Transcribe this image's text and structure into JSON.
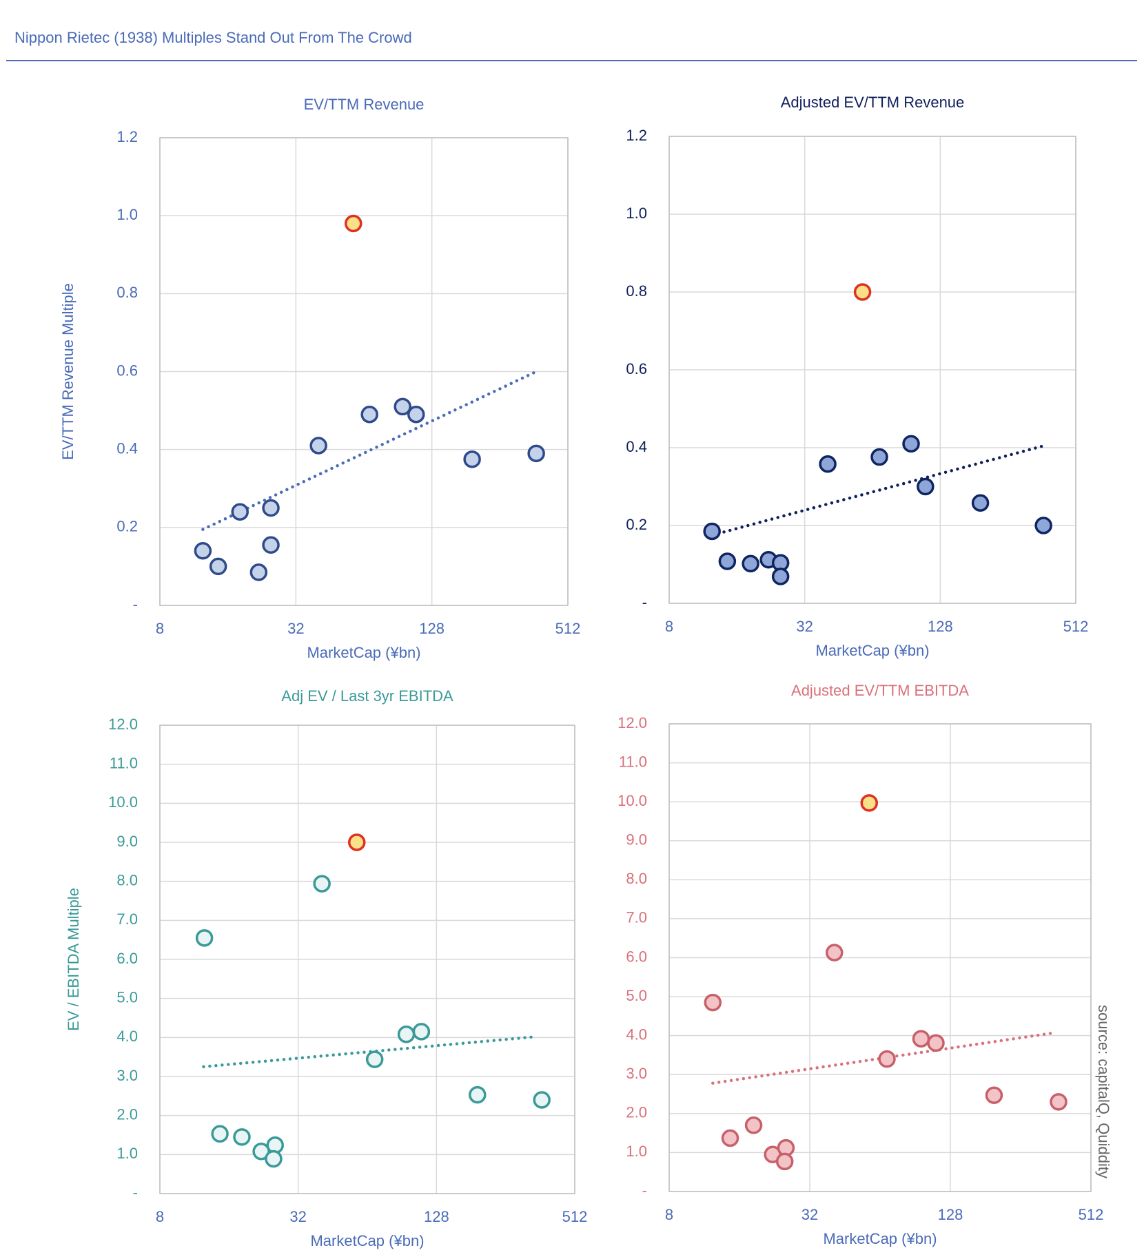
{
  "title": "Nippon Rietec (1938) Multiples Stand Out From The Crowd",
  "source": "source: capitalQ, Quiddity",
  "chart_data": [
    {
      "type": "scatter",
      "title": "EV/TTM Revenue",
      "xlabel": "MarketCap (¥bn)",
      "ylabel": "EV/TTM Revenue Multiple",
      "color": "#4a6bb8",
      "xscale": "log2",
      "xlim": [
        8,
        512
      ],
      "xticks": [
        8,
        32,
        128,
        512
      ],
      "ylim": [
        0,
        1.2
      ],
      "yticks": [
        {
          "value": 0,
          "label": "-"
        },
        0.2,
        0.4,
        0.6,
        0.8,
        {
          "value": 1,
          "label": "1.0"
        },
        1.2
      ],
      "grid": true,
      "series": [
        {
          "color": "#c5d3ea",
          "edge": "#2f4a8a",
          "x": [
            12.4,
            14.5,
            18.1,
            21.9,
            24.8,
            24.8,
            40.3,
            67.8,
            95,
            109,
            193,
            371
          ],
          "values": [
            0.14,
            0.1,
            0.24,
            0.085,
            0.25,
            0.155,
            0.41,
            0.49,
            0.51,
            0.49,
            0.375,
            0.39
          ]
        },
        {
          "color": "#fbe08a",
          "edge": "#e03020",
          "x": [
            57.5
          ],
          "values": [
            0.98
          ]
        }
      ],
      "trendline": {
        "color": "#4a6bb8",
        "x": [
          12.4,
          371
        ],
        "values": [
          0.195,
          0.6
        ]
      }
    },
    {
      "type": "scatter",
      "title": "Adjusted EV/TTM Revenue",
      "xlabel": "MarketCap (¥bn)",
      "color": "#0f1f5c",
      "xscale": "log2",
      "xlim": [
        8,
        512
      ],
      "xticks": [
        8,
        32,
        128,
        512
      ],
      "ylim": [
        0,
        1.2
      ],
      "yticks": [
        {
          "value": 0,
          "label": "-"
        },
        0.2,
        0.4,
        0.6,
        0.8,
        {
          "value": 1,
          "label": "1.0"
        },
        1.2
      ],
      "grid": true,
      "series": [
        {
          "color": "#8ea6d8",
          "edge": "#0f2460",
          "x": [
            12.4,
            14.5,
            18.4,
            22.1,
            25,
            25,
            40.5,
            68.7,
            95,
            110,
            193,
            368
          ],
          "values": [
            0.185,
            0.108,
            0.102,
            0.112,
            0.104,
            0.069,
            0.358,
            0.376,
            0.41,
            0.3,
            0.258,
            0.2
          ]
        },
        {
          "color": "#fbe08a",
          "edge": "#e03020",
          "x": [
            57.8
          ],
          "values": [
            0.8
          ]
        }
      ],
      "trendline": {
        "color": "#0f1f5c",
        "x": [
          12.4,
          370
        ],
        "values": [
          0.175,
          0.405
        ]
      }
    },
    {
      "type": "scatter",
      "title": "Adj EV / Last 3yr EBITDA",
      "xlabel": "MarketCap (¥bn)",
      "ylabel": "EV / EBITDA Multiple",
      "color": "#3a9a98",
      "xscale": "log2",
      "xlim": [
        8,
        512
      ],
      "xticks": [
        8,
        32,
        128,
        512
      ],
      "ylim": [
        0,
        12
      ],
      "yticks": [
        {
          "value": 0,
          "label": "-"
        },
        {
          "value": 1,
          "label": "1.0"
        },
        {
          "value": 2,
          "label": "2.0"
        },
        {
          "value": 3,
          "label": "3.0"
        },
        {
          "value": 4,
          "label": "4.0"
        },
        {
          "value": 5,
          "label": "5.0"
        },
        {
          "value": 6,
          "label": "6.0"
        },
        {
          "value": 7,
          "label": "7.0"
        },
        {
          "value": 8,
          "label": "8.0"
        },
        {
          "value": 9,
          "label": "9.0"
        },
        {
          "value": 10,
          "label": "10.0"
        },
        {
          "value": 11,
          "label": "11.0"
        },
        {
          "value": 12,
          "label": "12.0"
        }
      ],
      "grid": true,
      "series": [
        {
          "color": "#e8f5f4",
          "edge": "#3a9a98",
          "x": [
            12.5,
            14.6,
            18.2,
            22.1,
            25.4,
            25,
            40.6,
            68.9,
            94.6,
            110,
            193,
            368
          ],
          "values": [
            6.55,
            1.53,
            1.45,
            1.08,
            1.24,
            0.89,
            7.94,
            3.44,
            4.08,
            4.15,
            2.53,
            2.4
          ]
        },
        {
          "color": "#fbe08a",
          "edge": "#e03020",
          "x": [
            57.6
          ],
          "values": [
            9.0
          ]
        }
      ],
      "trendline": {
        "color": "#3a9a98",
        "x": [
          12.4,
          347
        ],
        "values": [
          3.25,
          4.02
        ]
      }
    },
    {
      "type": "scatter",
      "title": "Adjusted EV/TTM EBITDA",
      "xlabel": "MarketCap (¥bn)",
      "color": "#d9707a",
      "xscale": "log2",
      "xlim": [
        8,
        512
      ],
      "xticks": [
        8,
        32,
        128,
        512
      ],
      "ylim": [
        0,
        12
      ],
      "yticks": [
        {
          "value": 0,
          "label": "-"
        },
        {
          "value": 1,
          "label": "1.0"
        },
        {
          "value": 2,
          "label": "2.0"
        },
        {
          "value": 3,
          "label": "3.0"
        },
        {
          "value": 4,
          "label": "4.0"
        },
        {
          "value": 5,
          "label": "5.0"
        },
        {
          "value": 6,
          "label": "6.0"
        },
        {
          "value": 7,
          "label": "7.0"
        },
        {
          "value": 8,
          "label": "8.0"
        },
        {
          "value": 9,
          "label": "9.0"
        },
        {
          "value": 10,
          "label": "10.0"
        },
        {
          "value": 11,
          "label": "11.0"
        },
        {
          "value": 12,
          "label": "12.0"
        }
      ],
      "grid": true,
      "series": [
        {
          "color": "#f2c4c8",
          "edge": "#c8606a",
          "x": [
            12.3,
            14.6,
            18.4,
            22.2,
            25.3,
            25,
            40.8,
            68.5,
            95.9,
            111,
            197,
            372
          ],
          "values": [
            4.85,
            1.37,
            1.7,
            0.95,
            1.12,
            0.77,
            6.13,
            3.4,
            3.92,
            3.81,
            2.47,
            2.3
          ]
        },
        {
          "color": "#fbe08a",
          "edge": "#e03020",
          "x": [
            57.5
          ],
          "values": [
            9.97
          ]
        }
      ],
      "trendline": {
        "color": "#d9707a",
        "x": [
          12.3,
          364
        ],
        "values": [
          2.78,
          4.08
        ]
      }
    }
  ]
}
